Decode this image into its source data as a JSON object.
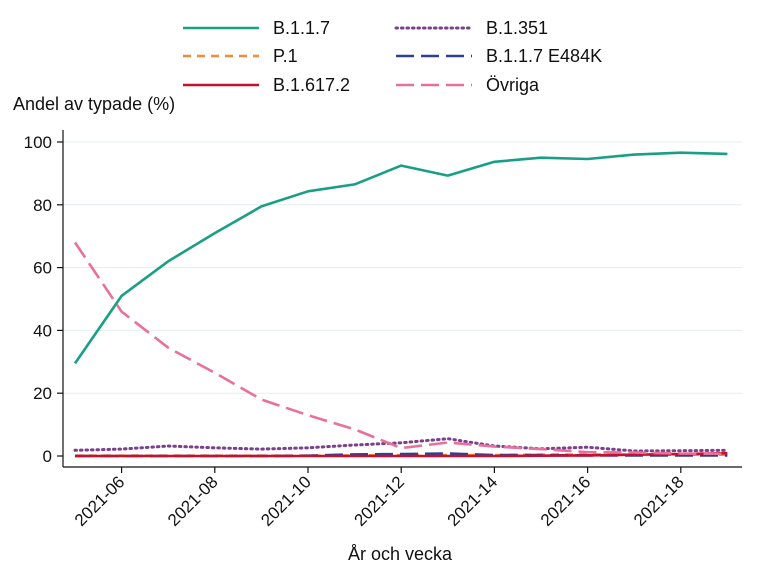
{
  "chart_data": {
    "type": "line",
    "title": "",
    "xlabel": "År och vecka",
    "ylabel": "Andel av typade (%)",
    "ylim": [
      0,
      100
    ],
    "yticks": [
      0,
      20,
      40,
      60,
      80,
      100
    ],
    "x": [
      "2021-05",
      "2021-06",
      "2021-07",
      "2021-08",
      "2021-09",
      "2021-10",
      "2021-11",
      "2021-12",
      "2021-13",
      "2021-14",
      "2021-15",
      "2021-16",
      "2021-17",
      "2021-18",
      "2021-19"
    ],
    "xtick_labels": [
      "2021-06",
      "2021-08",
      "2021-10",
      "2021-12",
      "2021-14",
      "2021-16",
      "2021-18"
    ],
    "grid": true,
    "legend_position": "top",
    "series": [
      {
        "name": "B.1.1.7",
        "color": "#1a9e85",
        "dash": "solid",
        "values": [
          29.5,
          51,
          62,
          71,
          79.5,
          84.3,
          86.5,
          92.5,
          89.3,
          93.7,
          95,
          94.6,
          96,
          96.6,
          96.2
        ]
      },
      {
        "name": "B.1.351",
        "color": "#7b3f8e",
        "dash": "dotted",
        "values": [
          1.8,
          2.2,
          3.2,
          2.6,
          2.2,
          2.6,
          3.5,
          4.2,
          5.5,
          3.2,
          2.3,
          2.8,
          1.6,
          1.7,
          1.8
        ]
      },
      {
        "name": "P.1",
        "color": "#f08a3c",
        "dash": "dashed",
        "values": [
          0.1,
          0.1,
          0.1,
          0.1,
          0.1,
          0.1,
          0.2,
          0.3,
          0.3,
          0.3,
          0.4,
          0.5,
          0.4,
          0.4,
          0.4
        ]
      },
      {
        "name": "B.1.1.7 E484K",
        "color": "#2e3f8f",
        "dash": "longdash",
        "values": [
          0,
          0,
          0,
          0,
          0,
          0.1,
          0.5,
          0.6,
          0.8,
          0.3,
          0.3,
          0.2,
          0.2,
          0.2,
          0.2
        ]
      },
      {
        "name": "B.1.617.2",
        "color": "#c8102e",
        "dash": "solid",
        "values": [
          0,
          0,
          0,
          0,
          0,
          0,
          0,
          0,
          0,
          0,
          0.1,
          0.2,
          0.4,
          0.6,
          0.9
        ]
      },
      {
        "name": "Övriga",
        "color": "#e8719b",
        "dash": "longdash",
        "values": [
          68,
          46,
          34.5,
          26.5,
          18,
          13,
          8.5,
          2.5,
          4.3,
          3,
          2.2,
          1.2,
          1.1,
          0.8,
          0.7
        ]
      }
    ]
  }
}
